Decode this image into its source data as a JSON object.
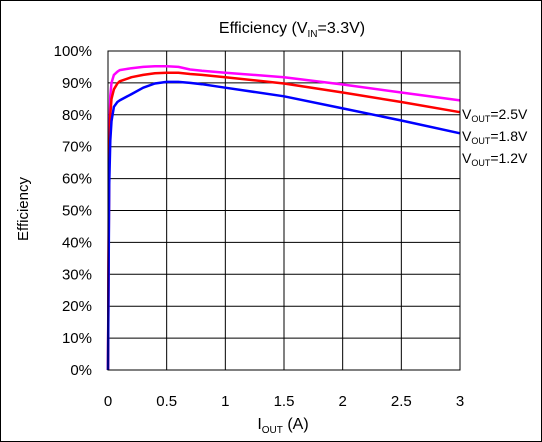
{
  "chart_data": {
    "type": "line",
    "title": {
      "main": "Efficiency (V",
      "sub": "IN",
      "tail": "=3.3V)"
    },
    "xlabel": {
      "main": "I",
      "sub": "OUT",
      "tail": " (A)"
    },
    "ylabel": "Efficiency",
    "xlim": [
      0,
      3
    ],
    "ylim": [
      0,
      100
    ],
    "x_ticks": [
      {
        "value": 0,
        "label": "0"
      },
      {
        "value": 0.5,
        "label": "0.5"
      },
      {
        "value": 1,
        "label": "1"
      },
      {
        "value": 1.5,
        "label": "1.5"
      },
      {
        "value": 2,
        "label": "2"
      },
      {
        "value": 2.5,
        "label": "2.5"
      },
      {
        "value": 3,
        "label": "3"
      }
    ],
    "y_ticks": [
      {
        "value": 0,
        "label": "0%"
      },
      {
        "value": 10,
        "label": "10%"
      },
      {
        "value": 20,
        "label": "20%"
      },
      {
        "value": 30,
        "label": "30%"
      },
      {
        "value": 40,
        "label": "40%"
      },
      {
        "value": 50,
        "label": "50%"
      },
      {
        "value": 60,
        "label": "60%"
      },
      {
        "value": 70,
        "label": "70%"
      },
      {
        "value": 80,
        "label": "80%"
      },
      {
        "value": 90,
        "label": "90%"
      },
      {
        "value": 100,
        "label": "100%"
      }
    ],
    "grid": true,
    "legend_position": "right",
    "series": [
      {
        "name": {
          "main": "V",
          "sub": "OUT",
          "tail": "=2.5V"
        },
        "color": "#ff00ff",
        "x": [
          0.0,
          0.005,
          0.01,
          0.02,
          0.03,
          0.05,
          0.08,
          0.1,
          0.2,
          0.3,
          0.4,
          0.5,
          0.6,
          0.7,
          0.8,
          1.0,
          1.5,
          2.0,
          2.5,
          3.0
        ],
        "y": [
          0,
          40,
          72,
          86,
          90,
          92.5,
          93.5,
          94,
          94.6,
          95,
          95.2,
          95.2,
          95,
          94.2,
          93.8,
          93.2,
          91.8,
          89.5,
          87,
          84.5
        ]
      },
      {
        "name": {
          "main": "V",
          "sub": "OUT",
          "tail": "=1.8V"
        },
        "color": "#ff0000",
        "x": [
          0.0,
          0.005,
          0.01,
          0.02,
          0.03,
          0.05,
          0.08,
          0.1,
          0.2,
          0.3,
          0.4,
          0.5,
          0.6,
          0.7,
          0.8,
          1.0,
          1.5,
          2.0,
          2.5,
          3.0
        ],
        "y": [
          0,
          35,
          65,
          80,
          85,
          88,
          89.8,
          90.5,
          91.8,
          92.5,
          93,
          93.2,
          93.2,
          92.8,
          92.5,
          91.8,
          89.8,
          87,
          84,
          80.8
        ]
      },
      {
        "name": {
          "main": "V",
          "sub": "OUT",
          "tail": "=1.2V"
        },
        "color": "#0000ff",
        "x": [
          0.0,
          0.005,
          0.01,
          0.02,
          0.03,
          0.05,
          0.08,
          0.1,
          0.2,
          0.3,
          0.4,
          0.5,
          0.6,
          0.7,
          0.8,
          1.0,
          1.5,
          2.0,
          2.5,
          3.0
        ],
        "y": [
          0,
          30,
          58,
          72,
          78,
          82.5,
          84,
          84.5,
          86.5,
          88.5,
          89.8,
          90.3,
          90.3,
          90,
          89.6,
          88.5,
          85.8,
          82,
          78.2,
          74.2
        ]
      }
    ]
  }
}
